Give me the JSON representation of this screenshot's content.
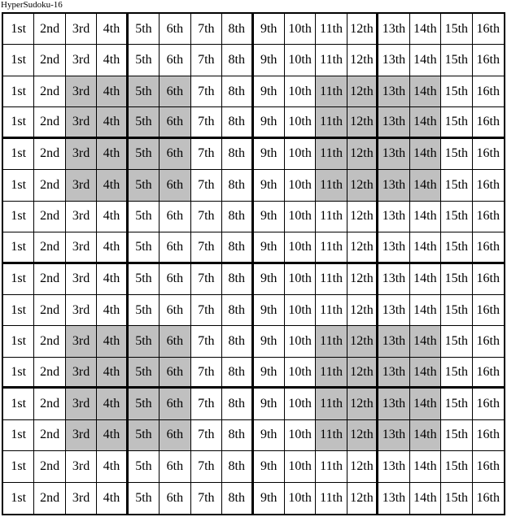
{
  "title": "HyperSudoku-16",
  "column_labels": [
    "1st",
    "2nd",
    "3rd",
    "4th",
    "5th",
    "6th",
    "7th",
    "8th",
    "9th",
    "10th",
    "11th",
    "12th",
    "13th",
    "14th",
    "15th",
    "16th"
  ],
  "row_count": 16,
  "highlight_color": "#c0c0c0",
  "highlighted_regions": [
    {
      "rows": [
        3,
        6
      ],
      "cols": [
        3,
        6
      ]
    },
    {
      "rows": [
        3,
        6
      ],
      "cols": [
        11,
        14
      ]
    },
    {
      "rows": [
        11,
        14
      ],
      "cols": [
        3,
        6
      ]
    },
    {
      "rows": [
        11,
        14
      ],
      "cols": [
        11,
        14
      ]
    }
  ]
}
